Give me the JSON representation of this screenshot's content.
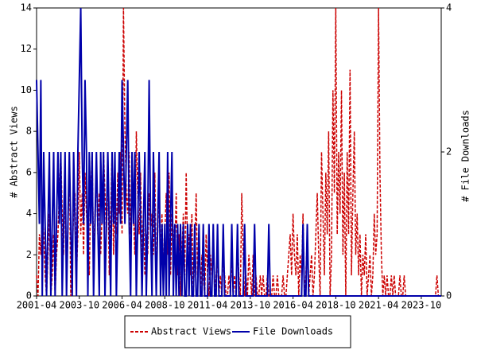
{
  "chart_data": {
    "type": "line",
    "y_label": "# Abstract Views",
    "y2_label": "# File Downloads",
    "x": [
      "2001-04",
      "2001-05",
      "2001-06",
      "2001-07",
      "2001-08",
      "2001-09",
      "2001-10",
      "2001-11",
      "2001-12",
      "2002-01",
      "2002-02",
      "2002-03",
      "2002-04",
      "2002-05",
      "2002-06",
      "2002-07",
      "2002-08",
      "2002-09",
      "2002-10",
      "2002-11",
      "2002-12",
      "2003-01",
      "2003-02",
      "2003-03",
      "2003-04",
      "2003-05",
      "2003-06",
      "2003-07",
      "2003-08",
      "2003-09",
      "2003-10",
      "2003-11",
      "2003-12",
      "2004-01",
      "2004-02",
      "2004-03",
      "2004-04",
      "2004-05",
      "2004-06",
      "2004-07",
      "2004-08",
      "2004-09",
      "2004-10",
      "2004-11",
      "2004-12",
      "2005-01",
      "2005-02",
      "2005-03",
      "2005-04",
      "2005-05",
      "2005-06",
      "2005-07",
      "2005-08",
      "2005-09",
      "2005-10",
      "2005-11",
      "2005-12",
      "2006-01",
      "2006-02",
      "2006-03",
      "2006-04",
      "2006-05",
      "2006-06",
      "2006-07",
      "2006-08",
      "2006-09",
      "2006-10",
      "2006-11",
      "2006-12",
      "2007-01",
      "2007-02",
      "2007-03",
      "2007-04",
      "2007-05",
      "2007-06",
      "2007-07",
      "2007-08",
      "2007-09",
      "2007-10",
      "2007-11",
      "2007-12",
      "2008-01",
      "2008-02",
      "2008-03",
      "2008-04",
      "2008-05",
      "2008-06",
      "2008-07",
      "2008-08",
      "2008-09",
      "2008-10",
      "2008-11",
      "2008-12",
      "2009-01",
      "2009-02",
      "2009-03",
      "2009-04",
      "2009-05",
      "2009-06",
      "2009-07",
      "2009-08",
      "2009-09",
      "2009-10",
      "2009-11",
      "2009-12",
      "2010-01",
      "2010-02",
      "2010-03",
      "2010-04",
      "2010-05",
      "2010-06",
      "2010-07",
      "2010-08",
      "2010-09",
      "2010-10",
      "2010-11",
      "2010-12",
      "2011-01",
      "2011-02",
      "2011-03",
      "2011-04",
      "2011-05",
      "2011-06",
      "2011-07",
      "2011-08",
      "2011-09",
      "2011-10",
      "2011-11",
      "2011-12",
      "2012-01",
      "2012-02",
      "2012-03",
      "2012-04",
      "2012-05",
      "2012-06",
      "2012-07",
      "2012-08",
      "2012-09",
      "2012-10",
      "2012-11",
      "2012-12",
      "2013-01",
      "2013-02",
      "2013-03",
      "2013-04",
      "2013-05",
      "2013-06",
      "2013-07",
      "2013-08",
      "2013-09",
      "2013-10",
      "2013-11",
      "2013-12",
      "2014-01",
      "2014-02",
      "2014-03",
      "2014-04",
      "2014-05",
      "2014-06",
      "2014-07",
      "2014-08",
      "2014-09",
      "2014-10",
      "2014-11",
      "2014-12",
      "2015-01",
      "2015-02",
      "2015-03",
      "2015-04",
      "2015-05",
      "2015-06",
      "2015-07",
      "2015-08",
      "2015-09",
      "2015-10",
      "2015-11",
      "2015-12",
      "2016-01",
      "2016-02",
      "2016-03",
      "2016-04",
      "2016-05",
      "2016-06",
      "2016-07",
      "2016-08",
      "2016-09",
      "2016-10",
      "2016-11",
      "2016-12",
      "2017-01",
      "2017-02",
      "2017-03",
      "2017-04",
      "2017-05",
      "2017-06",
      "2017-07",
      "2017-08",
      "2017-09",
      "2017-10",
      "2017-11",
      "2017-12",
      "2018-01",
      "2018-02",
      "2018-03",
      "2018-04",
      "2018-05",
      "2018-06",
      "2018-07",
      "2018-08",
      "2018-09",
      "2018-10",
      "2018-11",
      "2018-12",
      "2019-01",
      "2019-02",
      "2019-03",
      "2019-04",
      "2019-05",
      "2019-06",
      "2019-07",
      "2019-08",
      "2019-09",
      "2019-10",
      "2019-11",
      "2019-12",
      "2020-01",
      "2020-02",
      "2020-03",
      "2020-04",
      "2020-05",
      "2020-06",
      "2020-07",
      "2020-08",
      "2020-09",
      "2020-10",
      "2020-11",
      "2020-12",
      "2021-01",
      "2021-02",
      "2021-03",
      "2021-04",
      "2021-05",
      "2021-06",
      "2021-07",
      "2021-08",
      "2021-09",
      "2021-10",
      "2021-11",
      "2021-12",
      "2022-01",
      "2022-02",
      "2022-03",
      "2022-04",
      "2022-05",
      "2022-06",
      "2022-07",
      "2022-08",
      "2022-09",
      "2022-10",
      "2022-11",
      "2022-12",
      "2023-01",
      "2023-02",
      "2023-03",
      "2023-04",
      "2023-05",
      "2023-06",
      "2023-07",
      "2023-08",
      "2023-09",
      "2023-10",
      "2023-11",
      "2023-12",
      "2024-01",
      "2024-02",
      "2024-03",
      "2024-04",
      "2024-05",
      "2024-06",
      "2024-07",
      "2024-08",
      "2024-09",
      "2024-10",
      "2024-11",
      "2024-12"
    ],
    "xticks": [
      "2001-04",
      "2003-10",
      "2006-04",
      "2008-10",
      "2011-04",
      "2013-10",
      "2016-04",
      "2018-10",
      "2021-04",
      "2023-10"
    ],
    "ylim": [
      0,
      14
    ],
    "yticks": [
      0,
      2,
      4,
      6,
      8,
      10,
      12,
      14
    ],
    "y2lim": [
      0,
      4
    ],
    "y2ticks": [
      0,
      2,
      4
    ],
    "legend": "bottom",
    "series": [
      {
        "name": "Abstract Views",
        "color": "#cc0000",
        "dash": true,
        "values": [
          1,
          0,
          3,
          2,
          4,
          3,
          1,
          0,
          2,
          4,
          0,
          1,
          3,
          0,
          2,
          3,
          5,
          7,
          4,
          2,
          6,
          1,
          3,
          7,
          0,
          2,
          4,
          5,
          1,
          3,
          7,
          3,
          5,
          2,
          6,
          4,
          3,
          1,
          5,
          7,
          2,
          4,
          6,
          3,
          5,
          2,
          4,
          7,
          5,
          3,
          6,
          1,
          4,
          7,
          2,
          5,
          3,
          6,
          4,
          7,
          3,
          14,
          8,
          5,
          4,
          7,
          3,
          6,
          4,
          2,
          8,
          5,
          3,
          6,
          2,
          4,
          1,
          3,
          2,
          5,
          3,
          4,
          2,
          6,
          1,
          3,
          5,
          2,
          4,
          1,
          3,
          5,
          2,
          6,
          1,
          4,
          3,
          2,
          5,
          1,
          3,
          0,
          2,
          4,
          1,
          6,
          2,
          3,
          1,
          4,
          0,
          2,
          5,
          1,
          3,
          0,
          2,
          1,
          0,
          3,
          1,
          0,
          2,
          1,
          3,
          0,
          1,
          2,
          0,
          1,
          0,
          2,
          1,
          0,
          0,
          1,
          0,
          2,
          0,
          1,
          0,
          3,
          1,
          0,
          5,
          2,
          0,
          1,
          0,
          2,
          1,
          0,
          2,
          0,
          1,
          0,
          0,
          1,
          0,
          1,
          0,
          0,
          1,
          0,
          0,
          0,
          1,
          0,
          0,
          1,
          0,
          0,
          0,
          1,
          0,
          0,
          1,
          2,
          3,
          1,
          4,
          2,
          1,
          3,
          0,
          2,
          1,
          4,
          0,
          1,
          3,
          0,
          1,
          2,
          0,
          1,
          3,
          5,
          2,
          0,
          7,
          4,
          1,
          6,
          3,
          8,
          0,
          2,
          10,
          5,
          14,
          3,
          7,
          4,
          10,
          2,
          6,
          0,
          7,
          3,
          11,
          1,
          5,
          8,
          2,
          4,
          1,
          3,
          0,
          2,
          1,
          3,
          0,
          1,
          2,
          0,
          1,
          4,
          2,
          3,
          14,
          6,
          2,
          0,
          1,
          0,
          1,
          0,
          0,
          1,
          0,
          1,
          0,
          0,
          0,
          1,
          0,
          0,
          1,
          0,
          0,
          0,
          0,
          0,
          0,
          0,
          0,
          0,
          0,
          0,
          0,
          0,
          0,
          0,
          0,
          0,
          0,
          0,
          0,
          0,
          0,
          1,
          0,
          0,
          0
        ]
      },
      {
        "name": "File Downloads",
        "color": "#0000aa",
        "axis": "y2",
        "values": [
          3,
          2,
          1,
          3,
          0,
          2,
          1,
          0,
          1,
          2,
          0,
          1,
          2,
          0,
          1,
          2,
          1,
          2,
          0,
          1,
          2,
          0,
          1,
          2,
          1,
          0,
          2,
          1,
          0,
          2,
          3,
          4,
          2,
          1,
          3,
          2,
          0,
          2,
          1,
          2,
          0,
          1,
          2,
          1,
          0,
          2,
          1,
          2,
          0,
          1,
          2,
          1,
          0,
          2,
          1,
          2,
          0,
          1,
          2,
          1,
          3,
          2,
          1,
          2,
          3,
          1,
          0,
          2,
          1,
          2,
          0,
          1,
          2,
          1,
          0,
          1,
          2,
          0,
          1,
          3,
          1,
          0,
          2,
          1,
          0,
          1,
          2,
          0,
          1,
          0,
          1,
          0,
          2,
          0,
          1,
          2,
          0,
          1,
          0,
          1,
          0,
          1,
          0,
          1,
          0,
          0,
          1,
          0,
          1,
          0,
          0,
          1,
          0,
          0,
          1,
          0,
          0,
          1,
          0,
          0,
          0,
          1,
          0,
          0,
          1,
          0,
          0,
          1,
          0,
          0,
          0,
          1,
          0,
          0,
          0,
          0,
          0,
          1,
          0,
          0,
          0,
          1,
          0,
          0,
          0,
          0,
          1,
          0,
          0,
          0,
          0,
          0,
          0,
          1,
          0,
          0,
          0,
          0,
          0,
          0,
          0,
          0,
          0,
          1,
          0,
          0,
          0,
          0,
          0,
          0,
          0,
          0,
          0,
          0,
          0,
          0,
          0,
          0,
          0,
          0,
          0,
          0,
          0,
          0,
          0,
          0,
          0,
          1,
          0,
          0,
          1,
          0,
          0,
          0,
          0,
          0,
          0,
          0,
          0,
          0,
          0,
          0,
          0,
          0,
          0,
          0,
          0,
          0,
          0,
          0,
          0,
          0,
          0,
          0,
          0,
          0,
          0,
          0,
          0,
          0,
          0,
          0,
          0,
          0,
          0,
          0,
          0,
          0,
          0,
          0,
          0,
          0,
          0,
          0,
          0,
          0,
          0,
          0,
          0,
          0,
          0,
          0,
          0,
          0,
          0,
          0,
          0,
          0,
          0,
          0,
          0,
          0,
          0,
          0,
          0,
          0,
          0,
          0,
          0,
          0,
          0,
          0,
          0,
          0,
          0,
          0,
          0,
          0,
          0,
          0,
          0,
          0,
          0,
          0,
          0,
          0,
          0,
          0,
          0,
          0,
          0,
          0,
          0,
          0,
          0
        ]
      }
    ]
  }
}
